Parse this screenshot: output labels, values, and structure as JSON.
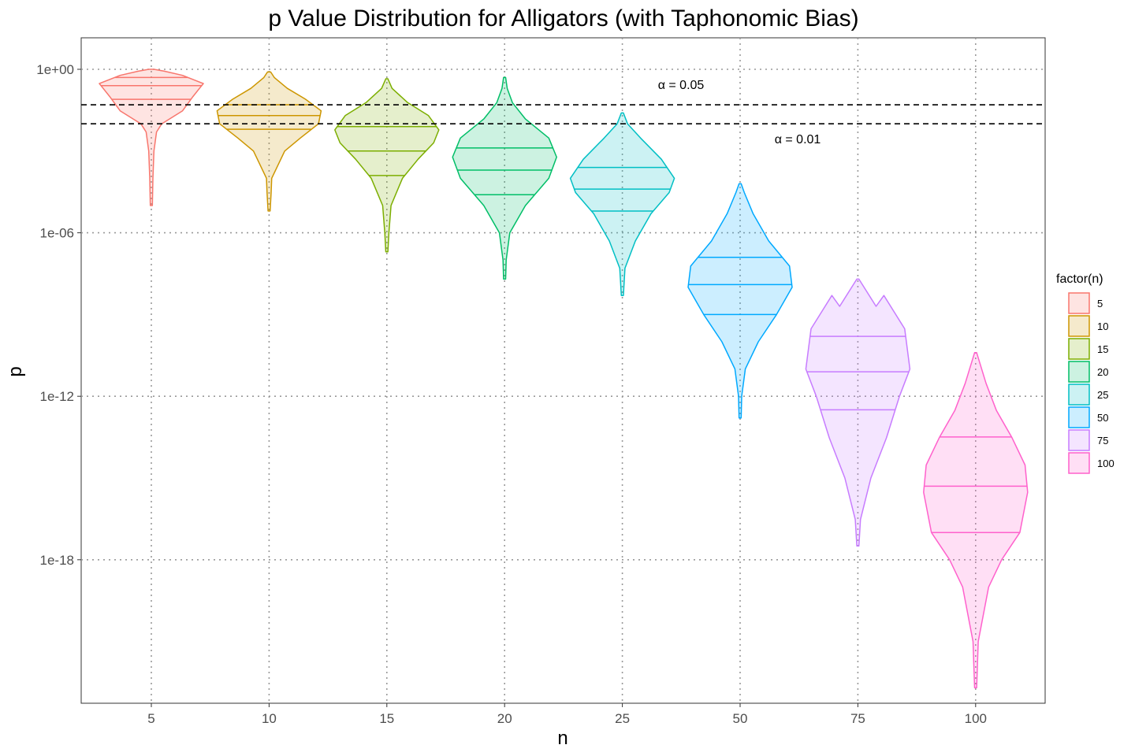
{
  "chart_data": {
    "type": "violin",
    "title": "p Value Distribution for Alligators (with Taphonomic Bias)",
    "xlabel": "n",
    "ylabel": "p",
    "y_scale": "log10",
    "ylim": [
      1e-24,
      3
    ],
    "y_ticks": [
      {
        "value": 1,
        "label": "1e+00"
      },
      {
        "value": 1e-06,
        "label": "1e-06"
      },
      {
        "value": 1e-12,
        "label": "1e-12"
      },
      {
        "value": 1e-18,
        "label": "1e-18"
      }
    ],
    "categories": [
      "5",
      "10",
      "15",
      "20",
      "25",
      "50",
      "75",
      "100"
    ],
    "grid": "dotted",
    "legend": {
      "title": "factor(n)",
      "position": "right",
      "items": [
        "5",
        "10",
        "15",
        "20",
        "25",
        "50",
        "75",
        "100"
      ]
    },
    "colors": [
      "#F8766D",
      "#CD9600",
      "#7CAE00",
      "#00BE67",
      "#00BFC4",
      "#00A9FF",
      "#C77CFF",
      "#FF61CC"
    ],
    "hlines": [
      {
        "value": 0.05,
        "label": "α = 0.05",
        "style": "dashed"
      },
      {
        "value": 0.01,
        "label": "α = 0.01",
        "style": "dashed"
      }
    ],
    "series": [
      {
        "name": "5",
        "min": 1e-05,
        "max": 1,
        "quantiles": [
          0.0794,
          0.2512,
          0.5012
        ],
        "profile": [
          [
            1e-05,
            0.02
          ],
          [
            0.0001,
            0.03
          ],
          [
            0.001,
            0.05
          ],
          [
            0.005,
            0.1
          ],
          [
            0.01,
            0.2
          ],
          [
            0.03,
            0.6
          ],
          [
            0.1,
            0.8
          ],
          [
            0.3,
            1.0
          ],
          [
            0.6,
            0.6
          ],
          [
            0.85,
            0.25
          ],
          [
            1,
            0.05
          ]
        ]
      },
      {
        "name": "10",
        "min": 6.3e-06,
        "max": 0.8,
        "quantiles": [
          0.0063,
          0.02,
          0.0501
        ],
        "profile": [
          [
            6.3e-06,
            0.02
          ],
          [
            3e-05,
            0.04
          ],
          [
            0.0001,
            0.05
          ],
          [
            0.001,
            0.3
          ],
          [
            0.003,
            0.6
          ],
          [
            0.01,
            0.95
          ],
          [
            0.03,
            1.0
          ],
          [
            0.08,
            0.7
          ],
          [
            0.2,
            0.35
          ],
          [
            0.5,
            0.1
          ],
          [
            0.8,
            0.03
          ]
        ]
      },
      {
        "name": "15",
        "min": 2e-07,
        "max": 0.45,
        "quantiles": [
          0.000126,
          0.001,
          0.0079
        ],
        "profile": [
          [
            2e-07,
            0.02
          ],
          [
            1e-06,
            0.04
          ],
          [
            1e-05,
            0.08
          ],
          [
            0.0001,
            0.3
          ],
          [
            0.0005,
            0.6
          ],
          [
            0.002,
            0.9
          ],
          [
            0.006,
            1.0
          ],
          [
            0.02,
            0.8
          ],
          [
            0.06,
            0.4
          ],
          [
            0.2,
            0.1
          ],
          [
            0.45,
            0.02
          ]
        ]
      },
      {
        "name": "20",
        "min": 2e-08,
        "max": 0.5,
        "quantiles": [
          2.5e-05,
          0.0002,
          0.0013
        ],
        "profile": [
          [
            2e-08,
            0.02
          ],
          [
            1e-07,
            0.03
          ],
          [
            1e-06,
            0.1
          ],
          [
            1e-05,
            0.4
          ],
          [
            0.0001,
            0.85
          ],
          [
            0.0006,
            1.0
          ],
          [
            0.003,
            0.85
          ],
          [
            0.015,
            0.4
          ],
          [
            0.06,
            0.15
          ],
          [
            0.2,
            0.05
          ],
          [
            0.5,
            0.02
          ]
        ]
      },
      {
        "name": "25",
        "min": 5e-09,
        "max": 0.025,
        "quantiles": [
          6.3e-06,
          4e-05,
          0.00025
        ],
        "profile": [
          [
            5e-09,
            0.02
          ],
          [
            5e-08,
            0.05
          ],
          [
            5e-07,
            0.25
          ],
          [
            5e-06,
            0.55
          ],
          [
            3e-05,
            0.9
          ],
          [
            0.0001,
            1.0
          ],
          [
            0.0005,
            0.75
          ],
          [
            0.003,
            0.35
          ],
          [
            0.01,
            0.1
          ],
          [
            0.025,
            0.02
          ]
        ]
      },
      {
        "name": "50",
        "min": 1.6e-13,
        "max": 6.3e-05,
        "quantiles": [
          1e-09,
          1.26e-08,
          1.26e-07
        ],
        "profile": [
          [
            1.6e-13,
            0.02
          ],
          [
            1e-12,
            0.03
          ],
          [
            1e-11,
            0.1
          ],
          [
            1e-10,
            0.35
          ],
          [
            1e-09,
            0.7
          ],
          [
            1e-08,
            1.0
          ],
          [
            6e-08,
            0.95
          ],
          [
            5e-07,
            0.55
          ],
          [
            5e-06,
            0.25
          ],
          [
            3e-05,
            0.08
          ],
          [
            6.3e-05,
            0.02
          ]
        ]
      },
      {
        "name": "75",
        "min": 3.2e-18,
        "max": 2e-08,
        "quantiles": [
          3.2e-13,
          7.9e-12,
          1.58e-10
        ],
        "profile": [
          [
            3.2e-18,
            0.02
          ],
          [
            3e-17,
            0.05
          ],
          [
            1e-15,
            0.25
          ],
          [
            3e-14,
            0.55
          ],
          [
            1e-12,
            0.8
          ],
          [
            1e-11,
            1.0
          ],
          [
            3e-10,
            0.9
          ],
          [
            5e-09,
            0.5
          ],
          [
            2e-09,
            0.35
          ],
          [
            2e-08,
            0.02
          ]
        ]
      },
      {
        "name": "100",
        "min": 2e-23,
        "max": 4e-11,
        "quantiles": [
          1e-17,
          5e-16,
          3.2e-14
        ],
        "profile": [
          [
            2e-23,
            0.02
          ],
          [
            1e-21,
            0.05
          ],
          [
            1e-19,
            0.25
          ],
          [
            1e-18,
            0.5
          ],
          [
            1e-17,
            0.85
          ],
          [
            3e-16,
            1.0
          ],
          [
            3e-15,
            0.95
          ],
          [
            3e-14,
            0.7
          ],
          [
            3e-13,
            0.4
          ],
          [
            3e-12,
            0.2
          ],
          [
            4e-11,
            0.02
          ]
        ]
      }
    ]
  }
}
